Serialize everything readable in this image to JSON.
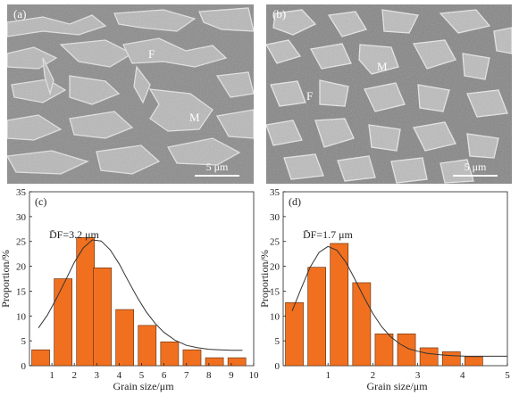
{
  "micrographs": [
    {
      "label": "(a)",
      "phases": [
        {
          "text": "F"
        },
        {
          "text": "M"
        }
      ],
      "scale_label": "5 μm"
    },
    {
      "label": "(b)",
      "phases": [
        {
          "text": "M"
        },
        {
          "text": "F"
        }
      ],
      "scale_label": "5 μm"
    }
  ],
  "colors": {
    "bar": "#f07020",
    "bar_stroke": "#5a2a0a",
    "fit": "#333333",
    "micro_bg": "#8d8d8d"
  },
  "chart_data": [
    {
      "type": "bar",
      "panel_label": "(c)",
      "annotation": "D̄F=3.2 μm",
      "xlabel": "Grain size/μm",
      "ylabel": "Proportion/%",
      "xlim": [
        0,
        10
      ],
      "ylim": [
        0,
        35
      ],
      "xticks": [
        1,
        2,
        3,
        4,
        5,
        6,
        7,
        8,
        9,
        10
      ],
      "yticks": [
        0,
        5,
        10,
        15,
        20,
        25,
        30,
        35
      ],
      "bin_width": 0.8,
      "x": [
        0.5,
        1.5,
        2.5,
        3.25,
        4.25,
        5.25,
        6.25,
        7.25,
        8.25,
        9.25
      ],
      "values": [
        3.2,
        17.5,
        25.8,
        19.7,
        11.3,
        8.1,
        4.8,
        3.2,
        1.6,
        1.6
      ],
      "fit_curve": {
        "x": [
          0.4,
          0.8,
          1.2,
          1.6,
          2.0,
          2.4,
          2.8,
          3.2,
          3.6,
          4.0,
          4.4,
          4.8,
          5.2,
          5.6,
          6.0,
          6.5,
          7.0,
          7.5,
          8.0,
          8.5,
          9.0,
          9.5
        ],
        "y": [
          7.6,
          10.2,
          13.5,
          17.1,
          20.8,
          23.7,
          25.3,
          25.1,
          23.3,
          20.5,
          17.1,
          13.8,
          10.9,
          8.5,
          6.7,
          5.1,
          4.1,
          3.6,
          3.3,
          3.2,
          3.1,
          3.1
        ]
      }
    },
    {
      "type": "bar",
      "panel_label": "(d)",
      "annotation": "D̄F=1.7 μm",
      "xlabel": "Grain size/μm",
      "ylabel": "Proportion/%",
      "xlim": [
        0,
        5
      ],
      "ylim": [
        0,
        35
      ],
      "xticks": [
        1,
        2,
        3,
        4,
        5
      ],
      "yticks": [
        0,
        5,
        10,
        15,
        20,
        25,
        30,
        35
      ],
      "bin_width": 0.4,
      "x": [
        0.25,
        0.75,
        1.25,
        1.75,
        2.25,
        2.75,
        3.25,
        3.75,
        4.25
      ],
      "values": [
        12.7,
        19.8,
        24.6,
        16.7,
        6.4,
        6.4,
        3.6,
        2.8,
        1.8
      ],
      "fit_curve": {
        "x": [
          0.2,
          0.4,
          0.6,
          0.8,
          1.0,
          1.2,
          1.4,
          1.6,
          1.8,
          2.0,
          2.2,
          2.4,
          2.6,
          2.8,
          3.0,
          3.2,
          3.5,
          3.8,
          4.1,
          4.4,
          4.7,
          5.0
        ],
        "y": [
          11.0,
          15.5,
          19.8,
          22.8,
          24.0,
          23.2,
          20.8,
          17.4,
          13.8,
          10.5,
          7.8,
          5.8,
          4.4,
          3.4,
          2.9,
          2.5,
          2.2,
          2.0,
          1.9,
          1.9,
          1.9,
          1.9
        ]
      }
    }
  ]
}
